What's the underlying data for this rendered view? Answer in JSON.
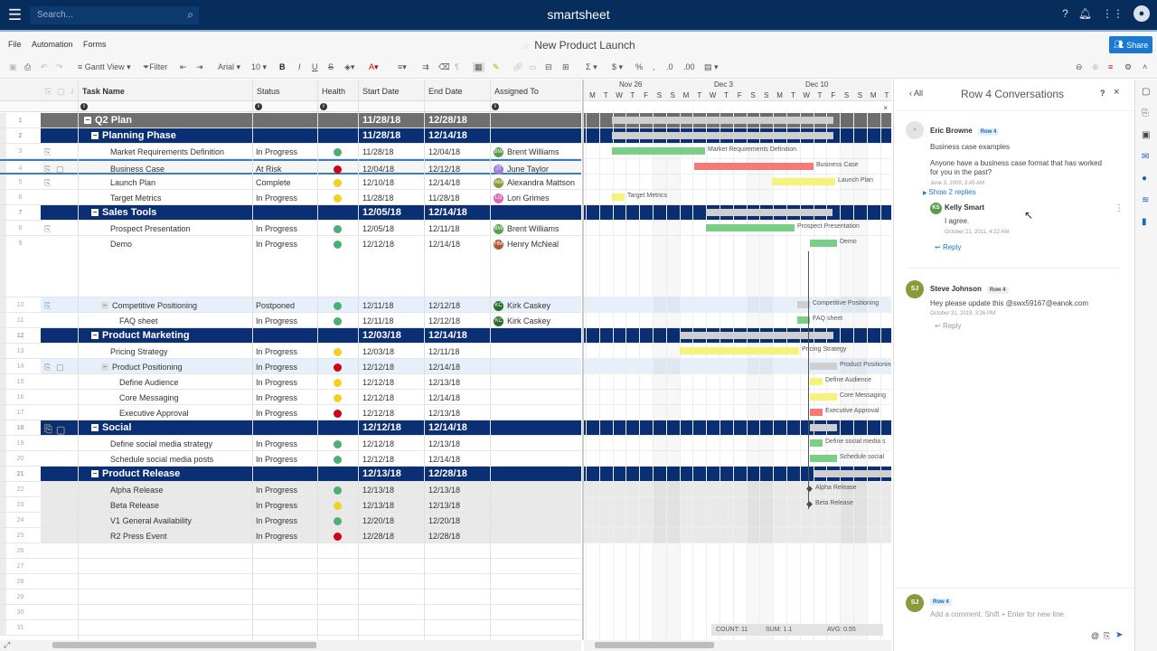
{
  "topbar": {
    "search_placeholder": "Search...",
    "brand": "smartsheet"
  },
  "menubar": {
    "items": [
      "File",
      "Automation",
      "Forms"
    ],
    "sheet_title": "New Product Launch",
    "share_label": "Share"
  },
  "toolbar": {
    "view_label": "Gantt View",
    "filter_label": "Filter",
    "font": "Arial",
    "font_size": "10"
  },
  "columns": [
    "Task Name",
    "Status",
    "Health",
    "Start Date",
    "End Date",
    "Assigned To"
  ],
  "rows": [
    {
      "n": "1",
      "task": "Q2 Plan",
      "start": "11/28/18",
      "end": "12/28/18",
      "type": "top"
    },
    {
      "n": "2",
      "task": "Planning Phase",
      "start": "11/28/18",
      "end": "12/14/18",
      "type": "parent"
    },
    {
      "n": "3",
      "task": "Market Requirements Definition",
      "status": "In Progress",
      "health": "green",
      "start": "11/28/18",
      "end": "12/04/18",
      "assignee": "Brent Williams",
      "initials": "BW",
      "av": "#5a9e4b"
    },
    {
      "n": "4",
      "task": "Business Case",
      "status": "At Risk",
      "health": "red",
      "start": "12/04/18",
      "end": "12/12/18",
      "assignee": "June Taylor",
      "initials": "JT",
      "av": "#9b7fd8"
    },
    {
      "n": "5",
      "task": "Launch Plan",
      "status": "Complete",
      "health": "yellow",
      "start": "12/10/18",
      "end": "12/14/18",
      "assignee": "Alexandra Mattson",
      "initials": "AM",
      "av": "#8a9a3a"
    },
    {
      "n": "6",
      "task": "Target Metrics",
      "status": "In Progress",
      "health": "yellow",
      "start": "11/28/18",
      "end": "11/28/18",
      "assignee": "Lori Grimes",
      "initials": "LG",
      "av": "#e067b4"
    },
    {
      "n": "7",
      "task": "Sales Tools",
      "start": "12/05/18",
      "end": "12/14/18",
      "type": "parent"
    },
    {
      "n": "8",
      "task": "Prospect Presentation",
      "status": "In Progress",
      "health": "green",
      "start": "12/05/18",
      "end": "12/11/18",
      "assignee": "Brent Williams",
      "initials": "BW",
      "av": "#5a9e4b"
    },
    {
      "n": "9",
      "task": "Demo",
      "status": "In Progress",
      "health": "green",
      "start": "12/12/18",
      "end": "12/14/18",
      "assignee": "Henry McNeal",
      "initials": "HM",
      "av": "#b0593a"
    },
    {
      "n": "10",
      "task": "Competitive Positioning",
      "status": "Postponed",
      "health": "green",
      "start": "12/11/18",
      "end": "12/12/18",
      "assignee": "Kirk Caskey",
      "initials": "KC",
      "av": "#2f6b2c"
    },
    {
      "n": "11",
      "task": "FAQ sheet",
      "status": "In Progress",
      "health": "green",
      "start": "12/11/18",
      "end": "12/12/18",
      "assignee": "Kirk Caskey",
      "initials": "KC",
      "av": "#2f6b2c"
    },
    {
      "n": "12",
      "task": "Product Marketing",
      "start": "12/03/18",
      "end": "12/14/18",
      "type": "parent"
    },
    {
      "n": "13",
      "task": "Pricing Strategy",
      "status": "In Progress",
      "health": "yellow",
      "start": "12/03/18",
      "end": "12/11/18"
    },
    {
      "n": "14",
      "task": "Product Positioning",
      "status": "In Progress",
      "health": "red",
      "start": "12/12/18",
      "end": "12/14/18"
    },
    {
      "n": "15",
      "task": "Define Audience",
      "status": "In Progress",
      "health": "yellow",
      "start": "12/12/18",
      "end": "12/13/18"
    },
    {
      "n": "16",
      "task": "Core Messaging",
      "status": "In Progress",
      "health": "yellow",
      "start": "12/12/18",
      "end": "12/14/18"
    },
    {
      "n": "17",
      "task": "Executive Approval",
      "status": "In Progress",
      "health": "red",
      "start": "12/12/18",
      "end": "12/13/18"
    },
    {
      "n": "18",
      "task": "Social",
      "start": "12/12/18",
      "end": "12/14/18",
      "type": "parent"
    },
    {
      "n": "19",
      "task": "Define social media strategy",
      "status": "In Progress",
      "health": "green",
      "start": "12/12/18",
      "end": "12/13/18"
    },
    {
      "n": "20",
      "task": "Schedule social media posts",
      "status": "In Progress",
      "health": "green",
      "start": "12/12/18",
      "end": "12/14/18"
    },
    {
      "n": "21",
      "task": "Product Release",
      "start": "12/13/18",
      "end": "12/28/18",
      "type": "parent"
    },
    {
      "n": "22",
      "task": "Alpha Release",
      "status": "In Progress",
      "health": "green",
      "start": "12/13/18",
      "end": "12/13/18"
    },
    {
      "n": "23",
      "task": "Beta Release",
      "status": "In Progress",
      "health": "yellow",
      "start": "12/13/18",
      "end": "12/13/18"
    },
    {
      "n": "24",
      "task": "V1 General Availability",
      "status": "In Progress",
      "health": "green",
      "start": "12/20/18",
      "end": "12/20/18"
    },
    {
      "n": "25",
      "task": "R2 Press Event",
      "status": "In Progress",
      "health": "red",
      "start": "12/28/18",
      "end": "12/28/18"
    }
  ],
  "empty_rows": [
    "26",
    "27",
    "28",
    "29",
    "30",
    "31"
  ],
  "gantt": {
    "weeks": [
      "Nov 26",
      "Dec 3",
      "Dec 10"
    ],
    "days": [
      "M",
      "T",
      "W",
      "T",
      "F",
      "S",
      "S",
      "M",
      "T",
      "W",
      "T",
      "F",
      "S",
      "S",
      "M",
      "T",
      "W",
      "T",
      "F",
      "S",
      "S",
      "M",
      "T"
    ]
  },
  "status_bar": {
    "count": "COUNT:  11",
    "sum": "SUM:  1.1",
    "avg": "AVG:  0.55"
  },
  "panel": {
    "back_label": "All",
    "title": "Row 4 Conversations",
    "comments": [
      {
        "name": "Eric Browne",
        "tag": "Row 4",
        "subject": "Business case examples",
        "body": "Anyone have a business case format that has worked for you in the past?",
        "date": "June 3, 2009, 3:45 AM",
        "show_replies": "Show 2 replies"
      },
      {
        "name": "Kelly Smart",
        "body": "I agree.",
        "date": "October 21, 2011, 4:22 AM",
        "reply": "Reply"
      },
      {
        "name": "Steve Johnson",
        "initials": "SJ",
        "tag": "Row 4",
        "body": "Hey please update this @swx59167@eanok.com",
        "date": "October 31, 2019, 3:26 PM",
        "reply": "Reply"
      }
    ],
    "composer": {
      "initials": "SJ",
      "tag": "Row 4",
      "placeholder": "Add a comment. Shift + Enter for new line."
    }
  },
  "colors": {
    "header": "#062d5b",
    "parent_row": "#0b2f74",
    "accent": "#1979d3",
    "green": "#4caf74",
    "yellow": "#f2d024",
    "red": "#d0021b"
  }
}
